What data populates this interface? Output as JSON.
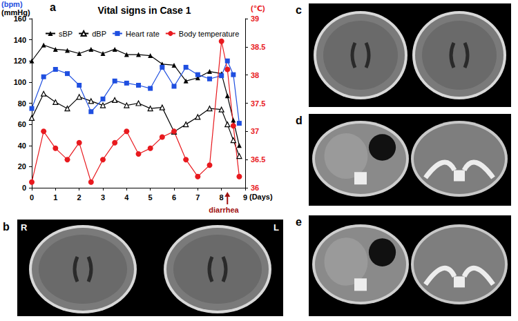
{
  "chart_data": {
    "type": "line",
    "title": "Vital signs in Case 1",
    "ylabel": [
      "(bpm)",
      "(mmHg)"
    ],
    "y2label": "(℃)",
    "xlabel": "(Days)",
    "x": [
      0,
      0.5,
      1,
      1.5,
      2,
      2.5,
      3,
      3.5,
      4,
      4.5,
      5,
      5.5,
      6,
      6.5,
      7,
      7.5,
      8,
      8.25,
      8.5,
      8.75
    ],
    "series": [
      {
        "name": "sBP",
        "color": "#000000",
        "marker": "triangle",
        "axis": "y",
        "values": [
          120,
          135,
          131,
          130,
          127,
          131,
          127,
          131,
          126,
          126,
          125,
          117,
          116,
          101,
          104,
          110,
          108,
          87,
          64,
          40
        ]
      },
      {
        "name": "dBP",
        "color": "#000000",
        "marker": "open_triangle",
        "axis": "y",
        "values": [
          66,
          89,
          81,
          75,
          86,
          82,
          78,
          83,
          78,
          80,
          75,
          76,
          53,
          60,
          67,
          75,
          74,
          60,
          45,
          30
        ]
      },
      {
        "name": "Heart rate",
        "color": "#1f4fe0",
        "marker": "square",
        "axis": "y",
        "values": [
          75,
          105,
          112,
          108,
          97,
          72,
          84,
          101,
          99,
          97,
          94,
          114,
          96,
          114,
          107,
          103,
          106,
          120,
          107,
          61
        ]
      },
      {
        "name": "Body temperature",
        "color": "#e8191e",
        "marker": "circle",
        "axis": "y2",
        "values": [
          36.1,
          37.0,
          36.7,
          36.5,
          36.8,
          36.1,
          36.5,
          36.8,
          37.0,
          36.6,
          36.7,
          36.9,
          37.0,
          36.5,
          36.2,
          36.4,
          38.6,
          38.1,
          37.1,
          36.2
        ]
      }
    ],
    "xlim": [
      0,
      9
    ],
    "xticks": [
      0,
      1,
      2,
      3,
      4,
      5,
      6,
      7,
      8,
      9
    ],
    "ylim": [
      0,
      160
    ],
    "yticks": [
      0,
      20,
      40,
      60,
      80,
      100,
      120,
      140,
      160
    ],
    "y2lim": [
      36,
      39
    ],
    "y2ticks": [
      36,
      36.5,
      37,
      37.5,
      38,
      38.5,
      39
    ],
    "annotations": [
      {
        "text": "diarrhea",
        "x": 8.25
      }
    ],
    "grid": false,
    "legend": "top"
  },
  "panel_labels": [
    "a",
    "b",
    "c",
    "d",
    "e"
  ],
  "image_labels": [
    "R",
    "L"
  ]
}
